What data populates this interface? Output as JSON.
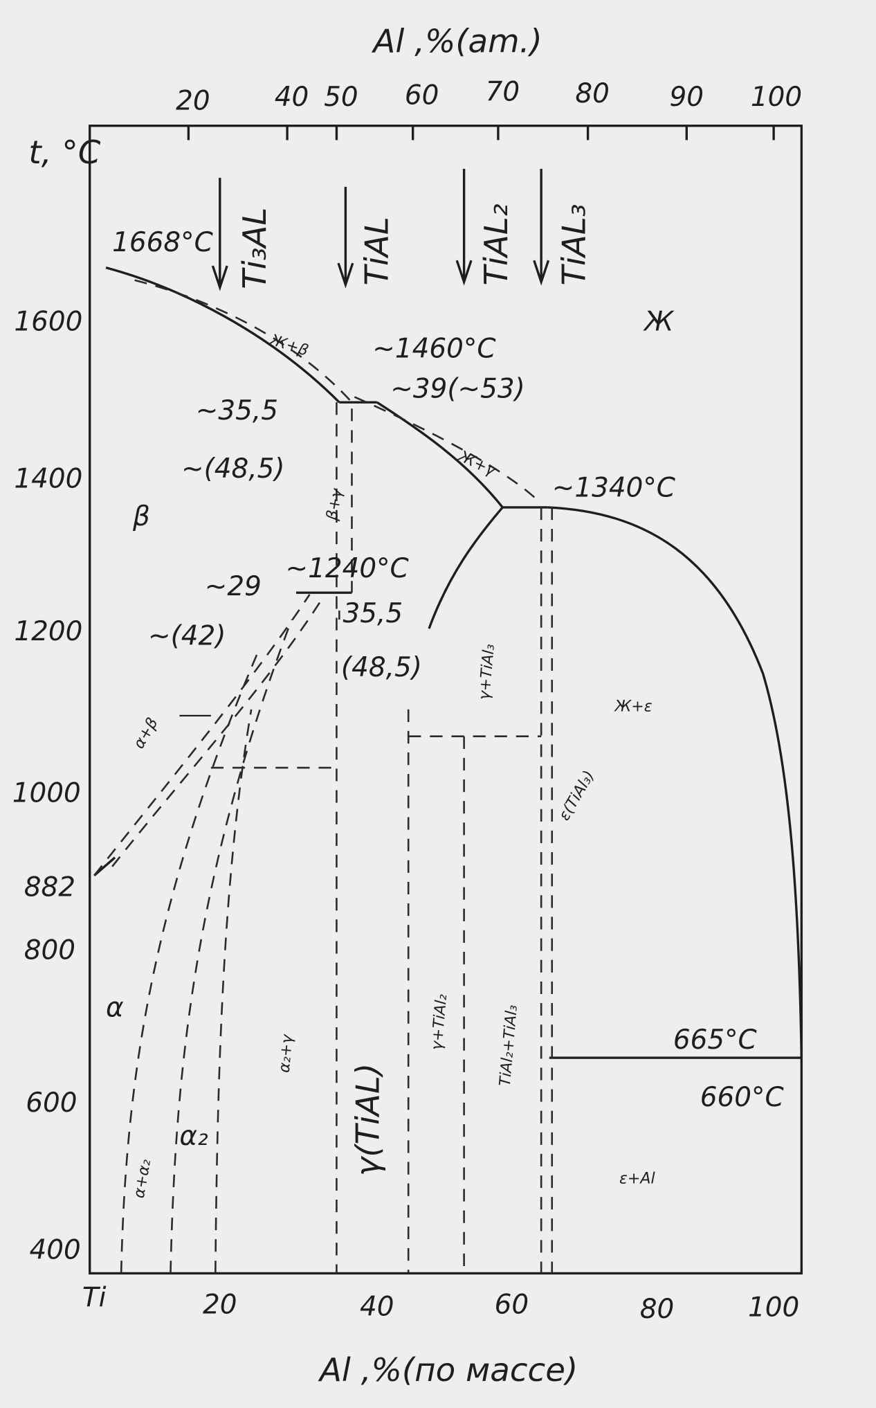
{
  "top_axis": {
    "title": "Al ,%(am.)",
    "ticks": [
      20,
      40,
      50,
      60,
      70,
      80,
      90,
      100
    ]
  },
  "left_axis": {
    "title": "t, °C",
    "ticks": [
      1600,
      1400,
      1200,
      1000,
      882,
      800,
      600,
      400
    ]
  },
  "bottom_axis": {
    "title": "Al ,%(по массе)",
    "ticks": [
      "Ti",
      20,
      40,
      60,
      80,
      100
    ]
  },
  "compounds": [
    "Ti₃AL",
    "TiAL",
    "TiAL₂",
    "TiAL₃"
  ],
  "annotations": [
    "1668°C",
    "~1460°C",
    "~35,5",
    "~39(~53)",
    "~(48,5)",
    "~1340°C",
    "~1240°C",
    "~29",
    "35,5",
    "(48,5)",
    "~(42)",
    "665°C",
    "660°C"
  ],
  "phases": [
    "Ж",
    "β",
    "α",
    "α₂",
    "γ(TiAL)",
    "Ж+β",
    "Ж+γ",
    "β+γ",
    "α+β",
    "γ+TiAl₃",
    "Ж+ε",
    "ε(TiAl₃)",
    "γ+TiAl₂",
    "TiAl₂+TiAl₃",
    "α₂+γ",
    "α+α₂",
    "ε+Al"
  ]
}
